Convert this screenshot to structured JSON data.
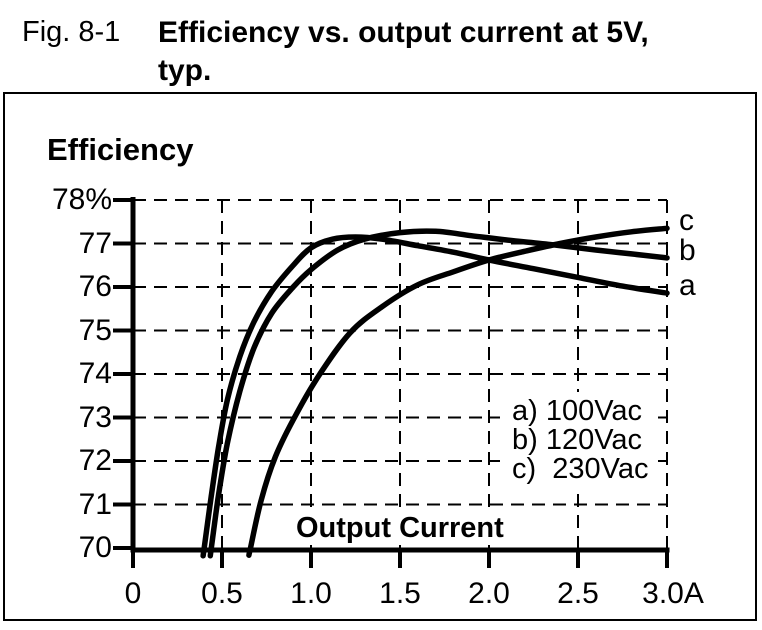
{
  "header": {
    "fig_label": "Fig. 8-1",
    "title_line1": "Efficiency vs. output current at 5V,",
    "title_line2": "typ."
  },
  "chart_data": {
    "type": "line",
    "title": "Efficiency vs. output current at 5V, typ.",
    "ylabel": "Efficiency",
    "xlabel": "Output Current",
    "x_unit": "A",
    "y_unit": "%",
    "xlim": [
      0,
      3.0
    ],
    "ylim": [
      70,
      78
    ],
    "grid": "dashed",
    "line_color": "#000000",
    "background_color": "#ffffff",
    "x_tick_values": [
      0,
      0.5,
      1.0,
      1.5,
      2.0,
      2.5,
      3.0
    ],
    "x_tick_labels": [
      "0",
      "0.5",
      "1.0",
      "1.5",
      "2.0",
      "2.5",
      "3.0A"
    ],
    "y_tick_values": [
      78,
      77,
      76,
      75,
      74,
      73,
      72,
      71,
      70
    ],
    "y_tick_labels": [
      "78%",
      "77",
      "76",
      "75",
      "74",
      "73",
      "72",
      "71",
      "70"
    ],
    "legend": {
      "position": "inside-lower-right",
      "items": [
        "a) 100Vac",
        "b) 120Vac",
        "c)  230Vac"
      ]
    },
    "series": [
      {
        "label": "a",
        "name": "100Vac",
        "points": [
          [
            0.4,
            70
          ],
          [
            0.44,
            71.2
          ],
          [
            0.48,
            72.3
          ],
          [
            0.53,
            73.4
          ],
          [
            0.6,
            74.4
          ],
          [
            0.68,
            75.2
          ],
          [
            0.78,
            75.9
          ],
          [
            0.9,
            76.5
          ],
          [
            1.0,
            76.9
          ],
          [
            1.12,
            77.1
          ],
          [
            1.25,
            77.15
          ],
          [
            1.4,
            77.1
          ],
          [
            1.6,
            76.95
          ],
          [
            1.8,
            76.8
          ],
          [
            2.0,
            76.62
          ],
          [
            2.25,
            76.42
          ],
          [
            2.5,
            76.22
          ],
          [
            2.75,
            76.02
          ],
          [
            3.0,
            75.86
          ]
        ]
      },
      {
        "label": "b",
        "name": "120Vac",
        "points": [
          [
            0.44,
            70
          ],
          [
            0.48,
            71.2
          ],
          [
            0.53,
            72.4
          ],
          [
            0.6,
            73.6
          ],
          [
            0.68,
            74.6
          ],
          [
            0.78,
            75.4
          ],
          [
            0.9,
            76.0
          ],
          [
            1.0,
            76.4
          ],
          [
            1.15,
            76.85
          ],
          [
            1.3,
            77.1
          ],
          [
            1.5,
            77.25
          ],
          [
            1.7,
            77.28
          ],
          [
            1.9,
            77.18
          ],
          [
            2.1,
            77.08
          ],
          [
            2.36,
            76.97
          ],
          [
            2.6,
            76.85
          ],
          [
            2.8,
            76.76
          ],
          [
            3.0,
            76.67
          ]
        ]
      },
      {
        "label": "c",
        "name": "230Vac",
        "points": [
          [
            0.66,
            70
          ],
          [
            0.72,
            71.1
          ],
          [
            0.8,
            72.1
          ],
          [
            0.92,
            73.1
          ],
          [
            1.05,
            74.0
          ],
          [
            1.22,
            74.95
          ],
          [
            1.4,
            75.55
          ],
          [
            1.6,
            76.05
          ],
          [
            1.8,
            76.35
          ],
          [
            2.0,
            76.62
          ],
          [
            2.2,
            76.82
          ],
          [
            2.4,
            77.0
          ],
          [
            2.6,
            77.15
          ],
          [
            2.8,
            77.27
          ],
          [
            3.0,
            77.35
          ]
        ]
      }
    ]
  }
}
